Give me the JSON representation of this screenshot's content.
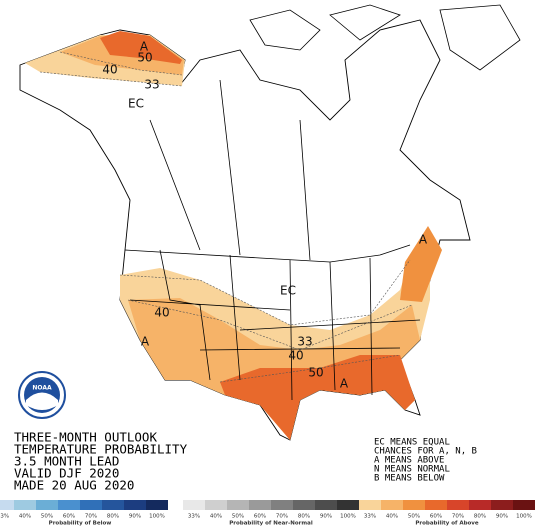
{
  "map": {
    "labels": [
      "A",
      "50",
      "40",
      "33",
      "EC",
      "A",
      "EC",
      "40",
      "A",
      "33",
      "40",
      "50",
      "A"
    ]
  },
  "logo": "NOAA",
  "title": [
    "THREE-MONTH OUTLOOK",
    "TEMPERATURE PROBABILITY",
    "3.5 MONTH LEAD",
    "VALID DJF 2020",
    "MADE 20 AUG 2020"
  ],
  "legend": [
    "EC MEANS EQUAL",
    "CHANCES FOR A, N, B",
    "A MEANS ABOVE",
    "N MEANS NORMAL",
    "B MEANS BELOW"
  ],
  "colorbar": [
    {
      "name": "Probability of Below",
      "ticks": [
        "33%",
        "40%",
        "50%",
        "60%",
        "70%",
        "80%",
        "90%",
        "100%"
      ],
      "colors": [
        "#c6dbef",
        "#9ecae1",
        "#6baed6",
        "#4a90cf",
        "#3070b8",
        "#25559c",
        "#1c3d80",
        "#142a5e"
      ]
    },
    {
      "name": "Probability of Near-Normal",
      "ticks": [
        "33%",
        "40%",
        "50%",
        "60%",
        "70%",
        "80%",
        "90%",
        "100%"
      ],
      "colors": [
        "#e8e8e8",
        "#cfcfcf",
        "#b5b5b5",
        "#9a9a9a",
        "#808080",
        "#666666",
        "#4d4d4d",
        "#333333"
      ]
    },
    {
      "name": "Probability of Above",
      "ticks": [
        "33%",
        "40%",
        "50%",
        "60%",
        "70%",
        "80%",
        "90%",
        "100%"
      ],
      "colors": [
        "#f9d49a",
        "#f6b368",
        "#f0913f",
        "#e8692c",
        "#d8452a",
        "#b82a28",
        "#8c1d1d",
        "#6a1212"
      ]
    }
  ]
}
